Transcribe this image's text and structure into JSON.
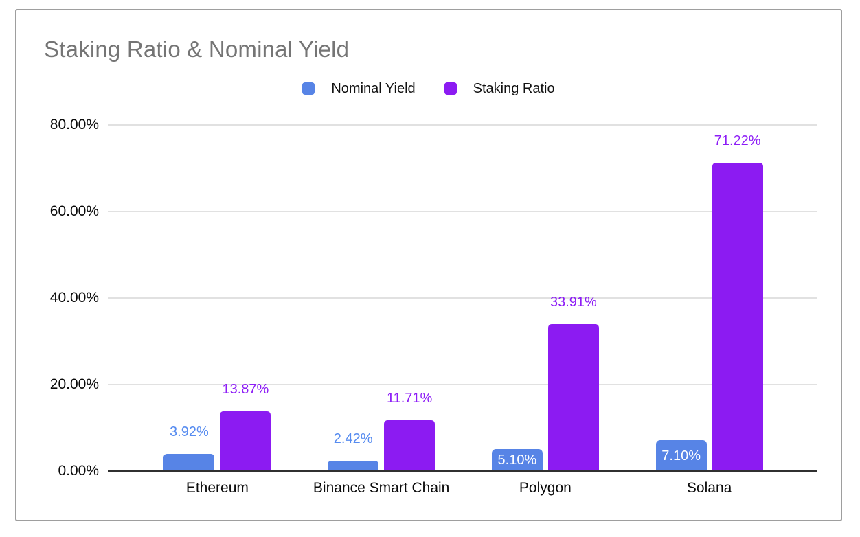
{
  "chart_data": {
    "type": "bar",
    "title": "Staking Ratio & Nominal Yield",
    "categories": [
      "Ethereum",
      "Binance Smart Chain",
      "Polygon",
      "Solana"
    ],
    "series": [
      {
        "name": "Nominal Yield",
        "color": "#5784e6",
        "label_color": "#578cf0",
        "values": [
          3.92,
          2.42,
          5.1,
          7.1
        ],
        "labels": [
          "3.92%",
          "2.42%",
          "5.10%",
          "7.10%"
        ],
        "label_inside": [
          false,
          false,
          true,
          true
        ]
      },
      {
        "name": "Staking Ratio",
        "color": "#8c1bf2",
        "label_color": "#8d1df6",
        "values": [
          13.87,
          11.71,
          33.91,
          71.22
        ],
        "labels": [
          "13.87%",
          "11.71%",
          "33.91%",
          "71.22%"
        ],
        "label_inside": [
          false,
          false,
          false,
          false
        ]
      }
    ],
    "y_axis": {
      "min": 0,
      "max": 80,
      "ticks": [
        {
          "label": "80.00%",
          "value": 80
        },
        {
          "label": "60.00%",
          "value": 60
        },
        {
          "label": "40.00%",
          "value": 40
        },
        {
          "label": "20.00%",
          "value": 20
        },
        {
          "label": "0.00%",
          "value": 0
        }
      ]
    },
    "grid": true,
    "legend_position": "top",
    "colors": {
      "title_text": "#757575",
      "axis_text": "#0a0a0a",
      "gridline": "#e1e1e1",
      "axis_line": "#303030",
      "card_border": "#9e9e9e",
      "inside_label_text": "#ffffff"
    }
  }
}
